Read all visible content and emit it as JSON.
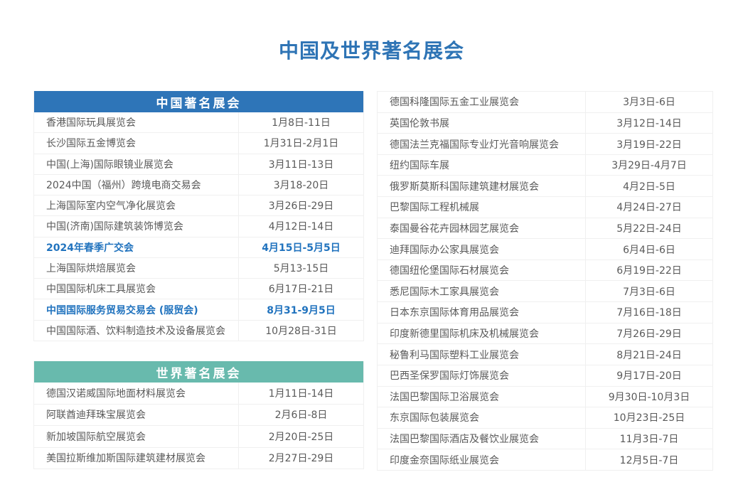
{
  "page": {
    "title": "中国及世界著名展会"
  },
  "colors": {
    "title_blue": "#2E74B5",
    "china_header_bg": "#2E75B8",
    "world_header_bg": "#68BAAD",
    "row_text": "#595959",
    "highlight_blue": "#2173BE",
    "row_border": "#F0F0F0",
    "header_text": "#FFFFFF"
  },
  "china_table": {
    "header": "中国著名展会",
    "rows": [
      {
        "name": "香港国际玩具展览会",
        "date": "1月8日-11日",
        "highlight": false
      },
      {
        "name": "长沙国际五金博览会",
        "date": "1月31日-2月1日",
        "highlight": false
      },
      {
        "name": "中国(上海)国际眼镜业展览会",
        "date": "3月11日-13日",
        "highlight": false
      },
      {
        "name": "2024中国（福州）跨境电商交易会",
        "date": "3月18-20日",
        "highlight": false
      },
      {
        "name": "上海国际室内空气净化展览会",
        "date": "3月26日-29日",
        "highlight": false
      },
      {
        "name": "中国(济南)国际建筑装饰博览会",
        "date": "4月12日-14日",
        "highlight": false
      },
      {
        "name": "2024年春季广交会",
        "date": "4月15日-5月5日",
        "highlight": true
      },
      {
        "name": "上海国际烘焙展览会",
        "date": "5月13-15日",
        "highlight": false
      },
      {
        "name": "中国国际机床工具展览会",
        "date": "6月17日-21日",
        "highlight": false
      },
      {
        "name": "中国国际服务贸易交易会 (服贸会)",
        "date": "8月31-9月5日",
        "highlight": true
      },
      {
        "name": "中国国际酒、饮料制造技术及设备展览会",
        "date": "10月28日-31日",
        "highlight": false
      }
    ]
  },
  "world_table": {
    "header": "世界著名展会",
    "rows": [
      {
        "name": "德国汉诺威国际地面材料展览会",
        "date": "1月11日-14日",
        "highlight": false
      },
      {
        "name": "阿联酋迪拜珠宝展览会",
        "date": "2月6日-8日",
        "highlight": false
      },
      {
        "name": "新加坡国际航空展览会",
        "date": "2月20日-25日",
        "highlight": false
      },
      {
        "name": "美国拉斯维加斯国际建筑建材展览会",
        "date": "2月27日-29日",
        "highlight": false
      }
    ]
  },
  "world_table_continued": {
    "rows": [
      {
        "name": "德国科隆国际五金工业展览会",
        "date": "3月3日-6日",
        "highlight": false
      },
      {
        "name": "英国伦敦书展",
        "date": "3月12日-14日",
        "highlight": false
      },
      {
        "name": "德国法兰克福国际专业灯光音响展览会",
        "date": "3月19日-22日",
        "highlight": false
      },
      {
        "name": "纽约国际车展",
        "date": "3月29日-4月7日",
        "highlight": false
      },
      {
        "name": "俄罗斯莫斯科国际建筑建材展览会",
        "date": "4月2日-5日",
        "highlight": false
      },
      {
        "name": "巴黎国际工程机械展",
        "date": "4月24日-27日",
        "highlight": false
      },
      {
        "name": "泰国曼谷花卉园林园艺展览会",
        "date": "5月22日-24日",
        "highlight": false
      },
      {
        "name": "迪拜国际办公家具展览会",
        "date": "6月4日-6日",
        "highlight": false
      },
      {
        "name": "德国纽伦堡国际石材展览会",
        "date": "6月19日-22日",
        "highlight": false
      },
      {
        "name": "悉尼国际木工家具展览会",
        "date": "7月3日-6日",
        "highlight": false
      },
      {
        "name": "日本东京国际体育用品展览会",
        "date": "7月16日-18日",
        "highlight": false
      },
      {
        "name": "印度新德里国际机床及机械展览会",
        "date": "7月26日-29日",
        "highlight": false
      },
      {
        "name": "秘鲁利马国际塑料工业展览会",
        "date": "8月21日-24日",
        "highlight": false
      },
      {
        "name": "巴西圣保罗国际灯饰展览会",
        "date": "9月17日-20日",
        "highlight": false
      },
      {
        "name": "法国巴黎国际卫浴展览会",
        "date": "9月30日-10月3日",
        "highlight": false
      },
      {
        "name": "东京国际包装展览会",
        "date": "10月23日-25日",
        "highlight": false
      },
      {
        "name": "法国巴黎国际酒店及餐饮业展览会",
        "date": "11月3日-7日",
        "highlight": false
      },
      {
        "name": "印度金奈国际纸业展览会",
        "date": "12月5日-7日",
        "highlight": false
      }
    ]
  }
}
